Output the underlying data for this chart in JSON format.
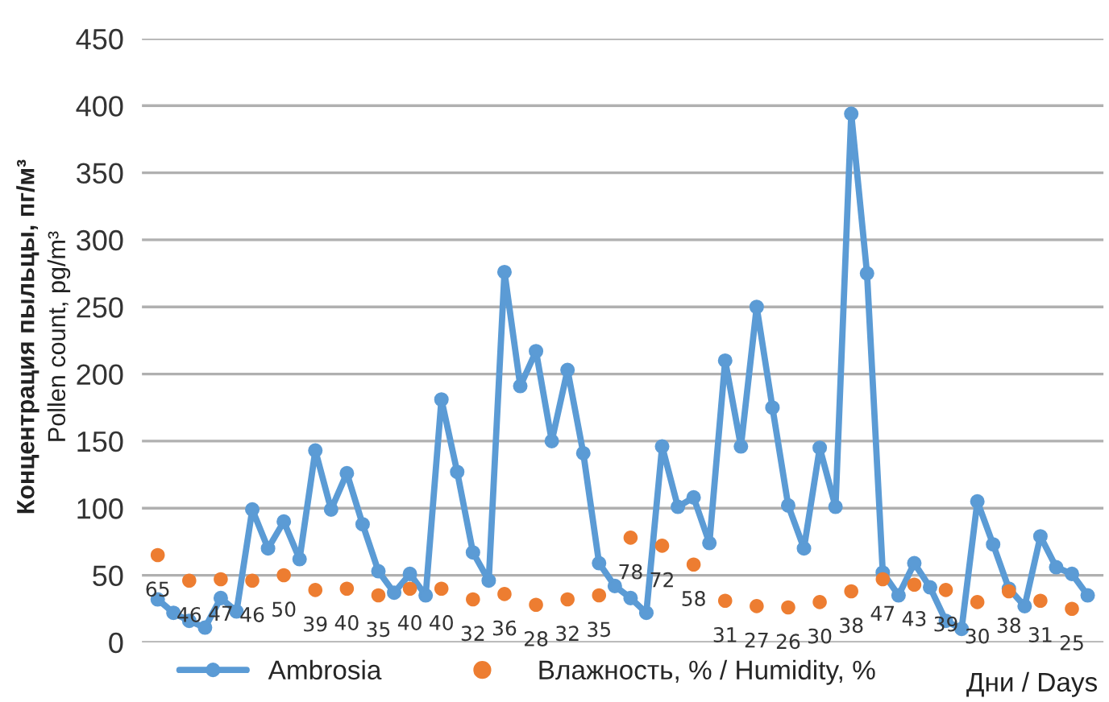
{
  "chart_data": {
    "type": "line",
    "categories": [
      null,
      null,
      null,
      null,
      null,
      null,
      null,
      null,
      null,
      null,
      null,
      null,
      null,
      null,
      null,
      null,
      null,
      null,
      null,
      null,
      null,
      null,
      null,
      null,
      null,
      null,
      null,
      null,
      null,
      null,
      null,
      null,
      null,
      null,
      null,
      null,
      null,
      null,
      null,
      null,
      null,
      null,
      null,
      null,
      null,
      null,
      null,
      null,
      null,
      null,
      null,
      null,
      null,
      null,
      null,
      null,
      null,
      null,
      null,
      null
    ],
    "ylabel": "Концентрация пыльцы, пг/м³\nPollen count, pg/m³",
    "xlabel": "Дни / Days",
    "ylim": [
      0,
      450
    ],
    "yticks": [
      0,
      50,
      100,
      150,
      200,
      250,
      300,
      350,
      400,
      450
    ],
    "grid": "y",
    "legend": "bottom",
    "tick_labels": "y",
    "series": [
      {
        "name": "Ambrosia",
        "marker": "circle",
        "color": "#5b9bd5",
        "values": [
          32,
          22,
          16,
          11,
          33,
          23,
          99,
          70,
          90,
          62,
          143,
          99,
          126,
          88,
          53,
          37,
          51,
          35,
          181,
          127,
          67,
          46,
          276,
          191,
          217,
          150,
          203,
          141,
          59,
          42,
          33,
          22,
          146,
          101,
          108,
          74,
          210,
          146,
          250,
          175,
          102,
          70,
          145,
          101,
          394,
          275,
          52,
          35,
          59,
          41,
          16,
          10,
          105,
          73,
          40,
          27,
          79,
          56,
          51,
          35
        ]
      },
      {
        "name": "Влажность, % / Humidity, %",
        "type": "scatter",
        "marker": "circle",
        "color": "#ed7d31",
        "values": [
          65,
          null,
          46,
          null,
          47,
          null,
          46,
          null,
          50,
          null,
          39,
          null,
          40,
          null,
          35,
          null,
          40,
          null,
          40,
          null,
          32,
          null,
          36,
          null,
          28,
          null,
          32,
          null,
          35,
          null,
          78,
          null,
          72,
          null,
          58,
          null,
          31,
          null,
          27,
          null,
          26,
          null,
          30,
          null,
          38,
          null,
          47,
          null,
          43,
          null,
          39,
          null,
          30,
          null,
          38,
          null,
          31,
          null,
          25,
          null
        ],
        "value_labels": [
          "65",
          null,
          "46",
          null,
          "47",
          null,
          "46",
          null,
          "50",
          null,
          "39",
          null,
          "40",
          null,
          "35",
          null,
          "40",
          null,
          "40",
          null,
          "32",
          null,
          "36",
          null,
          "28",
          null,
          "32",
          null,
          "35",
          null,
          "78",
          null,
          "72",
          null,
          "58",
          null,
          "31",
          null,
          "27",
          null,
          "26",
          null,
          "30",
          null,
          "38",
          null,
          "47",
          null,
          "43",
          null,
          "39",
          null,
          "30",
          null,
          "38",
          null,
          "31",
          null,
          "25",
          null
        ]
      }
    ]
  }
}
